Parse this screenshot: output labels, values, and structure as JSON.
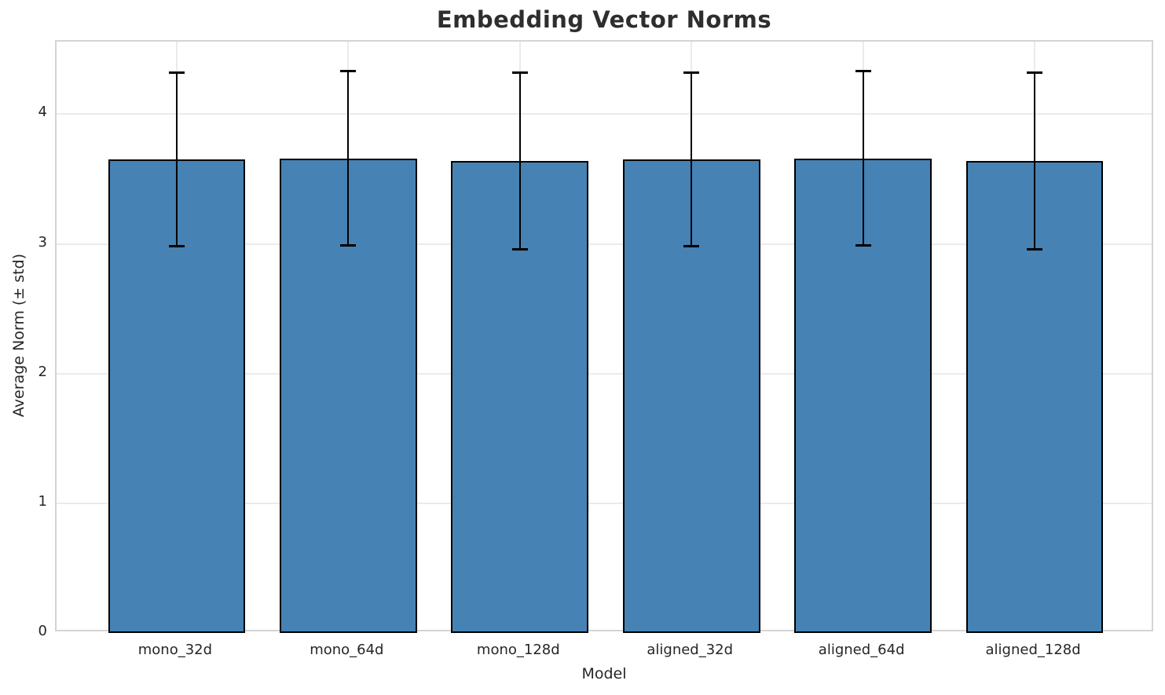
{
  "chart_data": {
    "type": "bar",
    "title": "Embedding Vector Norms",
    "xlabel": "Model",
    "ylabel": "Average Norm (± std)",
    "categories": [
      "mono_32d",
      "mono_64d",
      "mono_128d",
      "aligned_32d",
      "aligned_64d",
      "aligned_128d"
    ],
    "values": [
      3.65,
      3.66,
      3.64,
      3.65,
      3.66,
      3.64
    ],
    "errors": [
      0.67,
      0.67,
      0.68,
      0.67,
      0.67,
      0.68
    ],
    "ylim": [
      0,
      4.56
    ],
    "yticks": [
      0,
      1,
      2,
      3,
      4
    ],
    "xlim": [
      -0.7,
      5.7
    ],
    "bar_width": 0.8,
    "grid": true,
    "legend": "none",
    "colors": {
      "bar_fill": "#4682B4",
      "bar_edge": "#000000",
      "error_bar": "#000000",
      "grid_line": "#ebebeb",
      "spine": "#d4d4d4",
      "title_text": "#2e2e2e",
      "tick_text": "#262626"
    }
  }
}
